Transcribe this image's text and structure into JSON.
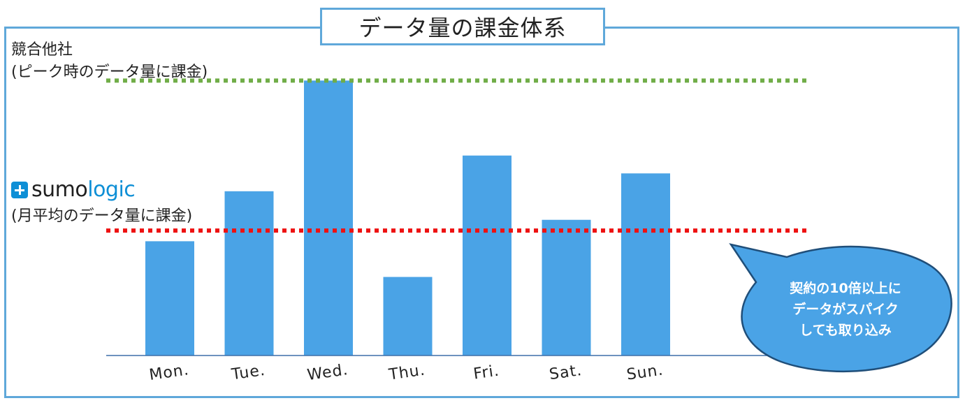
{
  "title": "データ量の課金体系",
  "competitor": {
    "line1": "競合他社",
    "line2": "(ピーク時のデータ量に課金)"
  },
  "sumo": {
    "logo_text_a": "sumo",
    "logo_text_b": "logic",
    "label": "(月平均のデータ量に課金)"
  },
  "callout": {
    "line1": "契約の10倍以上に",
    "line2": "データがスパイク",
    "line3": "しても取り込み"
  },
  "colors": {
    "bar": "#4aa3e6",
    "peak_line": "#70ad47",
    "average_line": "#ee1111",
    "frame": "#5fa8da",
    "bubble": "#4aa3e6",
    "bubble_border": "#1f4e79",
    "brand": "#0e8fd6"
  },
  "chart_data": {
    "type": "bar",
    "categories": [
      "Mon.",
      "Tue.",
      "Wed.",
      "Thu.",
      "Fri.",
      "Sat.",
      "Sun."
    ],
    "values": [
      32,
      46,
      77,
      22,
      56,
      38,
      51
    ],
    "ylim": [
      0,
      80
    ],
    "reference_lines": [
      {
        "label": "競合他社 (ピーク時のデータ量に課金)",
        "value": 77,
        "style": "dotted",
        "color": "#70ad47"
      },
      {
        "label": "sumologic (月平均のデータ量に課金)",
        "value": 35,
        "style": "dotted",
        "color": "#ee1111"
      }
    ],
    "grid": false,
    "legend": "none"
  }
}
